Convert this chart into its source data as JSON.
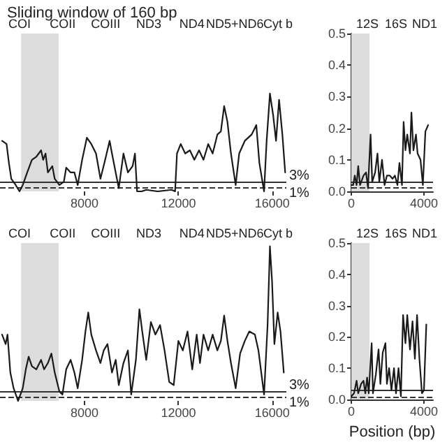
{
  "chart_data": [
    {
      "type": "line",
      "title": "Sliding window of 160 bp",
      "marker": "none",
      "tick_labels": "x",
      "xlim": [
        4400,
        16600
      ],
      "ylim": [
        0,
        0.5
      ],
      "xticks": [
        8000,
        12000,
        16000
      ],
      "x": [
        4490,
        4680,
        4780,
        4880,
        5070,
        5230,
        5370,
        5560,
        5760,
        5950,
        6150,
        6240,
        6340,
        6440,
        6630,
        6730,
        6930,
        7120,
        7220,
        7410,
        7570,
        7710,
        7900,
        8100,
        8290,
        8490,
        8680,
        8880,
        9070,
        9170,
        9460,
        9660,
        9850,
        10050,
        10150,
        10240,
        10440,
        10630,
        11120,
        11710,
        11860,
        11940,
        12100,
        12290,
        12490,
        12680,
        12880,
        13070,
        13270,
        13460,
        13660,
        13810,
        13950,
        14090,
        14240,
        14440,
        14590,
        14830,
        15120,
        15320,
        15450,
        15650,
        15760,
        15900,
        16040,
        16160,
        16290,
        16430,
        16550
      ],
      "series": [
        {
          "color": "#1a1a1a",
          "values": [
            0.16,
            0.15,
            0.09,
            0.04,
            0.02,
            0.0,
            0.02,
            0.06,
            0.1,
            0.11,
            0.13,
            0.1,
            0.12,
            0.06,
            0.08,
            0.04,
            0.02,
            0.03,
            0.075,
            0.06,
            0.06,
            0.02,
            0.1,
            0.17,
            0.15,
            0.12,
            0.04,
            0.1,
            0.16,
            0.12,
            0.01,
            0.12,
            0.06,
            0.08,
            0.12,
            0.0,
            0.0,
            0.005,
            0.0,
            0.005,
            0.0,
            0.12,
            0.15,
            0.12,
            0.13,
            0.1,
            0.13,
            0.1,
            0.15,
            0.12,
            0.18,
            0.19,
            0.27,
            0.22,
            0.12,
            0.02,
            0.12,
            0.16,
            0.18,
            0.21,
            0.09,
            0.0,
            0.16,
            0.31,
            0.24,
            0.16,
            0.29,
            0.18,
            0.06
          ]
        }
      ],
      "bands": [
        {
          "axis": "x",
          "from": 5300,
          "to": 6900,
          "color": "#dcdcdc"
        }
      ],
      "ref_lines": [
        {
          "axis": "y",
          "value": 0.03,
          "label": "3%",
          "color": "#333333",
          "line_style": "solid"
        },
        {
          "axis": "y",
          "value": 0.01,
          "label": "1%",
          "color": "#333333",
          "line_style": "dashed"
        }
      ],
      "annotations": [
        "COI",
        "COII",
        "COIII",
        "ND3",
        "ND4",
        "ND5+ND6",
        "Cyt b"
      ]
    },
    {
      "type": "line",
      "marker": "none",
      "xlim": [
        0,
        4500
      ],
      "ylim": [
        0,
        0.5
      ],
      "xticks": [
        0,
        4000
      ],
      "yticks": [
        {
          "value": 0,
          "label": "0.0"
        },
        0.1,
        0.2,
        0.3,
        0.4,
        0.5
      ],
      "x": [
        0,
        100,
        190,
        290,
        380,
        480,
        670,
        810,
        920,
        1060,
        1150,
        1310,
        1440,
        1540,
        1690,
        1830,
        1960,
        2120,
        2270,
        2400,
        2540,
        2650,
        2790,
        2880,
        2980,
        3080,
        3230,
        3310,
        3420,
        3560,
        3650,
        3810,
        3940,
        4080,
        4230
      ],
      "series": [
        {
          "color": "#1a1a1a",
          "values": [
            0.02,
            0.02,
            0.05,
            0.02,
            0.08,
            0.02,
            0.05,
            0.06,
            0.01,
            0.18,
            0.03,
            0.06,
            0.12,
            0.03,
            0.1,
            0.02,
            0.05,
            0.05,
            0.04,
            0.05,
            0.02,
            0.09,
            0.02,
            0.22,
            0.13,
            0.18,
            0.12,
            0.25,
            0.13,
            0.18,
            0.12,
            0.1,
            0.02,
            0.19,
            0.21
          ]
        }
      ],
      "bands": [
        {
          "axis": "x",
          "from": 0,
          "to": 1000,
          "color": "#dcdcdc"
        }
      ],
      "ref_lines": [
        {
          "axis": "y",
          "value": 0.03,
          "color": "#333333",
          "line_style": "solid"
        },
        {
          "axis": "y",
          "value": 0.01,
          "color": "#333333",
          "line_style": "dashed"
        }
      ],
      "annotations": [
        "12S",
        "16S",
        "ND1"
      ]
    },
    {
      "type": "line",
      "marker": "none",
      "tick_labels": "x",
      "xlim": [
        4400,
        16600
      ],
      "ylim": [
        0,
        0.5
      ],
      "xticks": [
        8000,
        12000,
        16000
      ],
      "x": [
        4490,
        4640,
        4720,
        4840,
        4980,
        5170,
        5370,
        5500,
        5620,
        5760,
        5950,
        6150,
        6280,
        6440,
        6590,
        6730,
        6930,
        7060,
        7220,
        7410,
        7570,
        7710,
        7900,
        8040,
        8160,
        8290,
        8490,
        8680,
        8820,
        8980,
        9170,
        9330,
        9460,
        9660,
        9850,
        9990,
        10190,
        10340,
        10460,
        10630,
        10830,
        11020,
        11220,
        11410,
        11610,
        11800,
        12000,
        12190,
        12390,
        12590,
        12780,
        12920,
        13070,
        13270,
        13460,
        13660,
        13810,
        13950,
        14090,
        14240,
        14440,
        14630,
        14830,
        15020,
        15260,
        15410,
        15650,
        15800,
        15900,
        15990,
        16090,
        16230,
        16350,
        16490
      ],
      "series": [
        {
          "color": "#1a1a1a",
          "values": [
            0.21,
            0.18,
            0.21,
            0.09,
            0.04,
            0.0,
            0.04,
            0.1,
            0.14,
            0.11,
            0.1,
            0.13,
            0.1,
            0.12,
            0.15,
            0.09,
            0.03,
            0.02,
            0.1,
            0.13,
            0.09,
            0.04,
            0.13,
            0.22,
            0.28,
            0.21,
            0.16,
            0.12,
            0.16,
            0.18,
            0.09,
            0.13,
            0.05,
            0.12,
            0.16,
            0.02,
            0.13,
            0.29,
            0.22,
            0.13,
            0.25,
            0.21,
            0.24,
            0.16,
            0.06,
            0.05,
            0.19,
            0.16,
            0.22,
            0.1,
            0.21,
            0.12,
            0.21,
            0.16,
            0.21,
            0.16,
            0.19,
            0.27,
            0.19,
            0.12,
            0.04,
            0.15,
            0.19,
            0.22,
            0.21,
            0.16,
            0.02,
            0.24,
            0.49,
            0.38,
            0.18,
            0.28,
            0.22,
            0.09
          ]
        }
      ],
      "bands": [
        {
          "axis": "x",
          "from": 5300,
          "to": 6900,
          "color": "#dcdcdc"
        }
      ],
      "ref_lines": [
        {
          "axis": "y",
          "value": 0.03,
          "label": "3%",
          "color": "#333333",
          "line_style": "solid"
        },
        {
          "axis": "y",
          "value": 0.01,
          "label": "1%",
          "color": "#333333",
          "line_style": "dashed"
        }
      ],
      "annotations": [
        "COI",
        "COII",
        "COIII",
        "ND3",
        "ND4",
        "ND5+ND6",
        "Cyt b"
      ]
    },
    {
      "type": "line",
      "marker": "none",
      "xlabel": "Position (bp)",
      "xlim": [
        0,
        4500
      ],
      "ylim": [
        0,
        0.5
      ],
      "xticks": [
        0,
        4000
      ],
      "yticks": [
        {
          "value": 0,
          "label": "0.0"
        },
        0.1,
        0.2,
        0.3,
        0.4,
        0.5
      ],
      "x": [
        0,
        150,
        290,
        380,
        540,
        670,
        770,
        870,
        960,
        1120,
        1190,
        1350,
        1500,
        1600,
        1730,
        1880,
        1960,
        2080,
        2210,
        2350,
        2460,
        2600,
        2730,
        2850,
        2980,
        3080,
        3230,
        3370,
        3500,
        3620,
        3750,
        3890,
        4000,
        4130
      ],
      "series": [
        {
          "color": "#1a1a1a",
          "values": [
            0.01,
            0.02,
            0.06,
            0.02,
            0.05,
            0.06,
            0.02,
            0.07,
            0.02,
            0.18,
            0.02,
            0.08,
            0.16,
            0.05,
            0.15,
            0.18,
            0.05,
            0.1,
            0.03,
            0.1,
            0.02,
            0.1,
            0.01,
            0.27,
            0.18,
            0.27,
            0.16,
            0.25,
            0.13,
            0.27,
            0.13,
            0.02,
            0.03,
            0.24
          ]
        }
      ],
      "bands": [
        {
          "axis": "x",
          "from": 0,
          "to": 1000,
          "color": "#dcdcdc"
        }
      ],
      "ref_lines": [
        {
          "axis": "y",
          "value": 0.03,
          "color": "#333333",
          "line_style": "solid"
        },
        {
          "axis": "y",
          "value": 0.01,
          "color": "#333333",
          "line_style": "dashed"
        }
      ],
      "annotations": [
        "12S",
        "16S",
        "ND1"
      ]
    }
  ]
}
